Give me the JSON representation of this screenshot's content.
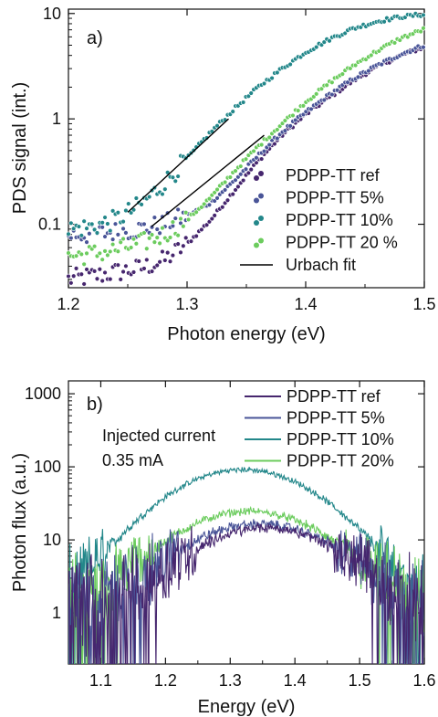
{
  "chart_data": [
    {
      "type": "scatter",
      "panel_label": "a)",
      "xlabel": "Photon energy (eV)",
      "ylabel": "PDS signal (int.)",
      "xlim": [
        1.2,
        1.5
      ],
      "ylim": [
        0.025,
        11
      ],
      "yscale": "log",
      "xticks": [
        1.2,
        1.3,
        1.4,
        1.5
      ],
      "xtick_labels": [
        "1.2",
        "1.3",
        "1.4",
        "1.5"
      ],
      "yticks": [
        0.1,
        1,
        10
      ],
      "ytick_labels": [
        "0.1",
        "1",
        "10"
      ],
      "legend_position": "lower-right",
      "series": [
        {
          "name": "PDPP-TT ref",
          "color": "#46266e",
          "marker": "circle",
          "x": [
            1.2,
            1.22,
            1.24,
            1.26,
            1.28,
            1.3,
            1.32,
            1.34,
            1.36,
            1.38,
            1.4,
            1.42,
            1.44,
            1.46,
            1.48,
            1.5
          ],
          "y": [
            0.03,
            0.032,
            0.035,
            0.038,
            0.045,
            0.065,
            0.11,
            0.21,
            0.4,
            0.7,
            1.1,
            1.6,
            2.3,
            3.1,
            4.0,
            4.8
          ]
        },
        {
          "name": "PDPP-TT 5%",
          "color": "#4a5598",
          "marker": "circle",
          "x": [
            1.2,
            1.22,
            1.24,
            1.26,
            1.28,
            1.3,
            1.32,
            1.34,
            1.36,
            1.38,
            1.4,
            1.42,
            1.44,
            1.46,
            1.48,
            1.5
          ],
          "y": [
            0.08,
            0.08,
            0.085,
            0.09,
            0.1,
            0.12,
            0.16,
            0.26,
            0.45,
            0.75,
            1.15,
            1.7,
            2.4,
            3.2,
            4.1,
            5.0
          ]
        },
        {
          "name": "PDPP-TT 10%",
          "color": "#23878a",
          "marker": "circle",
          "x": [
            1.2,
            1.22,
            1.24,
            1.26,
            1.28,
            1.3,
            1.32,
            1.34,
            1.36,
            1.38,
            1.4,
            1.42,
            1.44,
            1.46,
            1.48,
            1.5
          ],
          "y": [
            0.09,
            0.095,
            0.11,
            0.15,
            0.24,
            0.42,
            0.75,
            1.25,
            2.0,
            3.0,
            4.3,
            5.7,
            7.2,
            8.4,
            9.3,
            9.8
          ]
        },
        {
          "name": "PDPP-TT 20 %",
          "color": "#6ccc5e",
          "marker": "circle",
          "x": [
            1.2,
            1.22,
            1.24,
            1.26,
            1.28,
            1.3,
            1.32,
            1.34,
            1.36,
            1.38,
            1.4,
            1.42,
            1.44,
            1.46,
            1.48,
            1.5
          ],
          "y": [
            0.05,
            0.052,
            0.057,
            0.065,
            0.08,
            0.11,
            0.18,
            0.32,
            0.55,
            0.9,
            1.45,
            2.2,
            3.2,
            4.4,
            5.8,
            7.1
          ]
        }
      ],
      "fits": [
        {
          "name": "Urbach fit",
          "color": "#000000",
          "x": [
            1.25,
            1.335
          ],
          "y": [
            0.13,
            1.0
          ]
        },
        {
          "name": "Urbach fit",
          "color": "#000000",
          "x": [
            1.27,
            1.365
          ],
          "y": [
            0.095,
            0.7
          ]
        }
      ],
      "legend_entries": [
        "PDPP-TT ref",
        "PDPP-TT 5%",
        "PDPP-TT 10%",
        "PDPP-TT 20 %",
        "Urbach fit"
      ]
    },
    {
      "type": "line",
      "panel_label": "b)",
      "xlabel": "Energy (eV)",
      "ylabel": "Photon flux (a.u.)",
      "xlim": [
        1.05,
        1.6
      ],
      "ylim": [
        0.2,
        1500
      ],
      "yscale": "log",
      "xticks": [
        1.1,
        1.2,
        1.3,
        1.4,
        1.5,
        1.6
      ],
      "xtick_labels": [
        "1.1",
        "1.2",
        "1.3",
        "1.4",
        "1.5",
        "1.6"
      ],
      "yticks": [
        1,
        10,
        100,
        1000
      ],
      "ytick_labels": [
        "1",
        "10",
        "100",
        "1000"
      ],
      "annotation": [
        "Injected current",
        "0.35 mA"
      ],
      "legend_position": "top-right",
      "series": [
        {
          "name": "PDPP-TT ref",
          "color": "#46266e",
          "peak_x": 1.355,
          "peak_y": 13,
          "width": 0.085
        },
        {
          "name": "PDPP-TT 5%",
          "color": "#4a5598",
          "peak_x": 1.345,
          "peak_y": 15,
          "width": 0.09
        },
        {
          "name": "PDPP-TT 10%",
          "color": "#23878a",
          "peak_x": 1.32,
          "peak_y": 90,
          "width": 0.09
        },
        {
          "name": "PDPP-TT 20%",
          "color": "#6ccc5e",
          "peak_x": 1.33,
          "peak_y": 23,
          "width": 0.09
        }
      ],
      "noise_floor": 2
    }
  ]
}
